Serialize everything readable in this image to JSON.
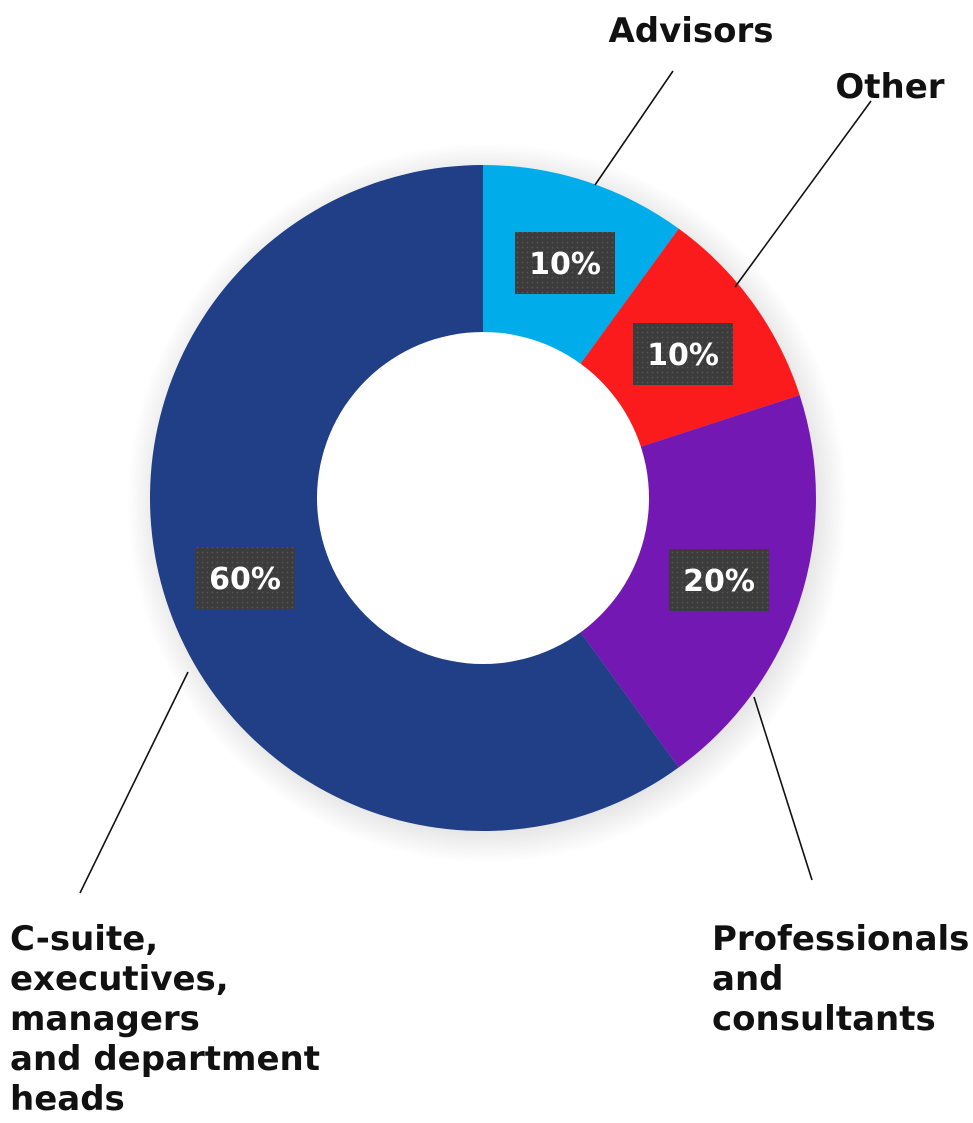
{
  "chart_data": {
    "type": "pie",
    "donut": true,
    "categories": [
      "Advisors",
      "Other",
      "Professionals and consultants",
      "C-suite, executives, managers and department heads"
    ],
    "values": [
      10,
      10,
      20,
      60
    ],
    "value_labels": [
      "10%",
      "10%",
      "20%",
      "60%"
    ],
    "category_label_lines": [
      [
        "Advisors"
      ],
      [
        "Other"
      ],
      [
        "Professionals",
        "and",
        "consultants"
      ],
      [
        "C-suite,",
        "executives,",
        "managers",
        "and department",
        "heads"
      ]
    ],
    "colors": [
      "#00adea",
      "#fb1a1c",
      "#7418b4",
      "#213f86"
    ],
    "title": "",
    "legend": "none"
  }
}
